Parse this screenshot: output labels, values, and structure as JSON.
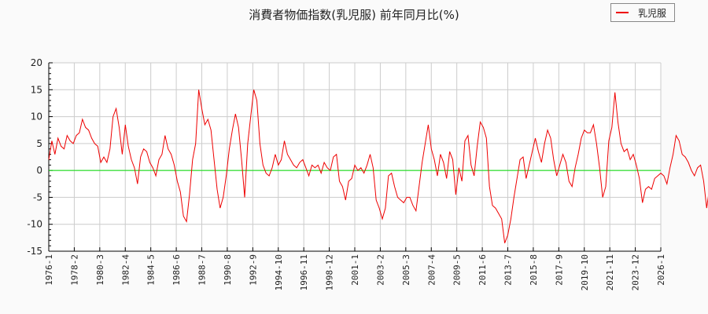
{
  "title": "消費者物価指数(乳児服) 前年同月比(%)",
  "legend": {
    "label": "乳児服",
    "color": "#ee0000"
  },
  "colors": {
    "series": "#ee0000",
    "zero_line": "#00dd00",
    "grid": "#cccccc",
    "background": "#ffffff",
    "page": "#fafafa"
  },
  "chart_data": {
    "type": "line",
    "title": "消費者物価指数(乳児服) 前年同月比(%)",
    "xlabel": "",
    "ylabel": "",
    "ylim": [
      -15,
      20
    ],
    "yticks": [
      20,
      15,
      10,
      5,
      0,
      -5,
      -10,
      -15
    ],
    "xticks": [
      "1976-1",
      "1978-2",
      "1980-3",
      "1982-4",
      "1984-5",
      "1986-6",
      "1988-7",
      "1990-8",
      "1992-9",
      "1994-10",
      "1996-11",
      "1998-12",
      "2001-1",
      "2003-2",
      "2005-3",
      "2007-4",
      "2009-5",
      "2011-6",
      "2013-7",
      "2015-8",
      "2017-9",
      "2019-10",
      "2021-11",
      "2023-12",
      "2026-1"
    ],
    "grid": true,
    "legend_position": "top-right",
    "reference_line": {
      "y": 0,
      "color": "#00dd00"
    },
    "series": [
      {
        "name": "乳児服",
        "x_start": "1976-1",
        "step_months": 3,
        "values": [
          2.0,
          5.5,
          3.0,
          6.0,
          4.5,
          4.0,
          6.5,
          5.5,
          5.0,
          6.5,
          7.0,
          9.5,
          8.0,
          7.5,
          6.0,
          5.0,
          4.5,
          1.5,
          2.5,
          1.5,
          4.0,
          10.0,
          11.5,
          8.0,
          3.0,
          8.5,
          4.5,
          2.0,
          0.5,
          -2.5,
          2.5,
          4.0,
          3.5,
          1.5,
          0.5,
          -1.0,
          2.0,
          3.0,
          6.5,
          4.0,
          3.0,
          1.0,
          -2.0,
          -4.0,
          -8.5,
          -9.5,
          -4.5,
          2.0,
          5.0,
          15.0,
          11.5,
          8.5,
          9.5,
          7.5,
          2.0,
          -3.5,
          -7.0,
          -5.0,
          -1.0,
          4.0,
          7.5,
          10.5,
          8.0,
          2.0,
          -5.0,
          5.0,
          10.0,
          15.0,
          13.0,
          5.0,
          1.0,
          -0.5,
          -1.0,
          0.5,
          3.0,
          1.0,
          2.0,
          5.5,
          3.0,
          2.0,
          1.0,
          0.5,
          1.5,
          2.0,
          0.5,
          -1.0,
          1.0,
          0.5,
          1.0,
          -0.5,
          1.5,
          0.5,
          0.0,
          2.5,
          3.0,
          -2.0,
          -3.0,
          -5.5,
          -2.0,
          -1.5,
          1.0,
          0.0,
          0.5,
          -0.5,
          1.0,
          3.0,
          0.5,
          -5.5,
          -7.0,
          -9.0,
          -7.0,
          -1.0,
          -0.5,
          -3.0,
          -5.0,
          -5.5,
          -6.0,
          -5.0,
          -5.0,
          -6.5,
          -7.5,
          -3.0,
          1.5,
          5.0,
          8.5,
          4.0,
          2.0,
          -1.0,
          3.0,
          1.5,
          -1.5,
          3.5,
          2.0,
          -4.5,
          0.5,
          -2.0,
          5.5,
          6.5,
          1.0,
          -1.0,
          4.5,
          9.0,
          8.0,
          6.0,
          -3.0,
          -6.5,
          -7.0,
          -8.0,
          -9.0,
          -13.5,
          -12.0,
          -9.0,
          -5.0,
          -1.5,
          2.0,
          2.5,
          -1.5,
          1.0,
          3.5,
          6.0,
          3.5,
          1.5,
          5.0,
          7.5,
          6.0,
          2.0,
          -1.0,
          1.0,
          3.0,
          1.5,
          -2.0,
          -3.0,
          0.5,
          3.0,
          6.0,
          7.5,
          7.0,
          7.0,
          8.5,
          5.0,
          0.5,
          -5.0,
          -3.0,
          5.5,
          8.0,
          14.5,
          9.0,
          5.0,
          3.5,
          4.0,
          2.0,
          3.0,
          1.0,
          -1.5,
          -6.0,
          -3.5,
          -3.0,
          -3.5,
          -1.5,
          -1.0,
          -0.5,
          -1.0,
          -2.5,
          0.5,
          3.0,
          6.5,
          5.5,
          3.0,
          2.5,
          1.5,
          0.0,
          -1.0,
          0.5,
          1.0,
          -2.0,
          -7.0,
          -3.0,
          -2.5,
          -2.5,
          -3.0,
          -5.0,
          -7.0,
          -9.5,
          -8.0,
          -6.0,
          -5.0,
          -3.0,
          -2.5,
          -3.0,
          -3.5,
          1.0,
          1.5,
          0.0,
          1.0,
          2.5,
          1.5,
          -3.5,
          -7.5,
          -2.5,
          -3.5,
          -6.0
        ]
      }
    ]
  }
}
